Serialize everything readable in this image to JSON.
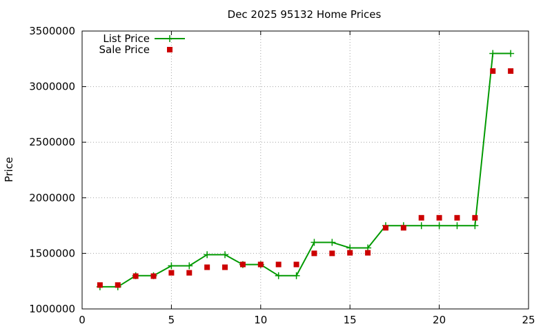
{
  "chart_data": {
    "type": "line",
    "title": "Dec 2025 95132 Home Prices",
    "xlabel": "",
    "ylabel": "Price",
    "xlim": [
      0,
      25
    ],
    "ylim": [
      1000000,
      3500000
    ],
    "xticks": [
      0,
      5,
      10,
      15,
      20,
      25
    ],
    "yticks": [
      1000000,
      1500000,
      2000000,
      2500000,
      3000000,
      3500000
    ],
    "xtick_labels": [
      "0",
      "5",
      "10",
      "15",
      "20",
      "25"
    ],
    "ytick_labels": [
      "1000000",
      "1500000",
      "2000000",
      "2500000",
      "3000000",
      "3500000"
    ],
    "grid": true,
    "legend_position": "top-left",
    "series": [
      {
        "name": "List Price",
        "style": "line-with-plus-markers",
        "color": "#009900",
        "x": [
          1,
          2,
          3,
          4,
          5,
          6,
          7,
          8,
          9,
          10,
          11,
          12,
          13,
          14,
          15,
          16,
          17,
          18,
          19,
          20,
          21,
          22,
          23,
          24
        ],
        "values": [
          1199000,
          1199000,
          1299000,
          1299000,
          1388000,
          1388000,
          1488000,
          1488000,
          1399000,
          1399000,
          1299000,
          1299000,
          1599000,
          1599000,
          1549000,
          1549000,
          1749000,
          1749000,
          1749000,
          1749000,
          1749000,
          1749000,
          3298000,
          3298000
        ]
      },
      {
        "name": "Sale Price",
        "style": "square-markers",
        "color": "#cc0000",
        "x": [
          1,
          2,
          3,
          4,
          5,
          6,
          7,
          8,
          9,
          10,
          11,
          12,
          13,
          14,
          15,
          16,
          17,
          18,
          19,
          20,
          21,
          22,
          23,
          24
        ],
        "values": [
          1215000,
          1215000,
          1295000,
          1295000,
          1325000,
          1325000,
          1375000,
          1375000,
          1400000,
          1400000,
          1400000,
          1400000,
          1500000,
          1500000,
          1505000,
          1505000,
          1730000,
          1730000,
          1820000,
          1820000,
          1820000,
          1820000,
          3140000,
          3140000
        ]
      }
    ]
  }
}
